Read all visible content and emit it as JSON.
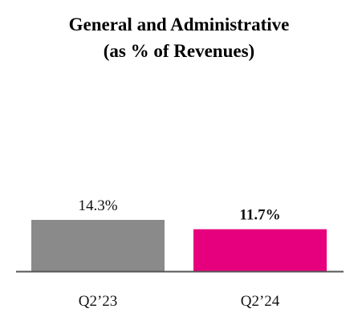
{
  "chart_data": {
    "type": "bar",
    "title_line1": "General and Administrative",
    "title_line2": "(as % of Revenues)",
    "categories": [
      "Q2’23",
      "Q2’24"
    ],
    "values": [
      14.3,
      11.7
    ],
    "value_labels": [
      "14.3%",
      "11.7%"
    ],
    "value_label_bold": [
      false,
      true
    ],
    "colors": [
      "#8a8a8a",
      "#e6007e"
    ],
    "xlabel": "",
    "ylabel": "",
    "grid": false
  }
}
